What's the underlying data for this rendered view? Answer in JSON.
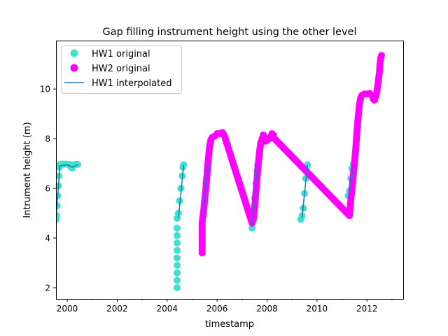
{
  "chart_data": {
    "type": "scatter",
    "title": "Gap filling instrument height using the other level",
    "xlabel": "timestamp",
    "ylabel": "Intrument height (m)",
    "xlim": [
      1999.55,
      2013.45
    ],
    "ylim": [
      1.55,
      11.95
    ],
    "xticks": [
      2000,
      2002,
      2004,
      2006,
      2008,
      2010,
      2012
    ],
    "xtick_labels": [
      "2000",
      "2002",
      "2004",
      "2006",
      "2008",
      "2010",
      "2012"
    ],
    "x_minor_ticks": [
      2001,
      2003,
      2005,
      2007,
      2009,
      2011,
      2013
    ],
    "yticks": [
      2,
      4,
      6,
      8,
      10
    ],
    "ytick_labels": [
      "2",
      "4",
      "6",
      "8",
      "10"
    ],
    "grid": false,
    "legend_position": "top-left",
    "colors": {
      "hw1": "#40e0d0",
      "hw2": "#ff00ff",
      "interp": "#1f77b4"
    },
    "series": [
      {
        "name": "HW1 original",
        "kind": "markers",
        "color": "#40e0d0",
        "points": [
          [
            1999.55,
            4.75
          ],
          [
            1999.58,
            4.9
          ],
          [
            1999.6,
            5.3
          ],
          [
            1999.62,
            5.7
          ],
          [
            1999.64,
            6.1
          ],
          [
            1999.66,
            6.5
          ],
          [
            1999.68,
            6.85
          ],
          [
            1999.7,
            6.95
          ],
          [
            1999.75,
            6.95
          ],
          [
            1999.8,
            6.98
          ],
          [
            1999.85,
            6.97
          ],
          [
            1999.95,
            6.98
          ],
          [
            2000.05,
            6.95
          ],
          [
            2000.1,
            6.96
          ],
          [
            2000.15,
            6.85
          ],
          [
            2000.2,
            6.82
          ],
          [
            2000.25,
            6.95
          ],
          [
            2000.35,
            6.97
          ],
          [
            2000.42,
            6.96
          ],
          [
            2004.4,
            2.0
          ],
          [
            2004.4,
            2.3
          ],
          [
            2004.4,
            2.6
          ],
          [
            2004.4,
            2.9
          ],
          [
            2004.4,
            3.2
          ],
          [
            2004.4,
            3.5
          ],
          [
            2004.4,
            3.8
          ],
          [
            2004.4,
            4.1
          ],
          [
            2004.4,
            4.4
          ],
          [
            2004.4,
            4.8
          ],
          [
            2004.45,
            5.0
          ],
          [
            2004.5,
            5.5
          ],
          [
            2004.55,
            6.0
          ],
          [
            2004.6,
            6.5
          ],
          [
            2004.63,
            6.85
          ],
          [
            2004.66,
            6.95
          ],
          [
            2005.45,
            4.9
          ],
          [
            2005.5,
            5.5
          ],
          [
            2005.55,
            6.2
          ],
          [
            2005.6,
            6.7
          ],
          [
            2005.62,
            6.95
          ],
          [
            2007.4,
            4.4
          ],
          [
            2007.45,
            5.0
          ],
          [
            2007.5,
            5.6
          ],
          [
            2007.55,
            6.2
          ],
          [
            2007.6,
            6.7
          ],
          [
            2007.62,
            6.95
          ],
          [
            2009.35,
            4.75
          ],
          [
            2009.4,
            4.9
          ],
          [
            2009.45,
            5.2
          ],
          [
            2009.5,
            5.8
          ],
          [
            2009.55,
            6.4
          ],
          [
            2009.58,
            6.85
          ],
          [
            2009.62,
            6.95
          ],
          [
            2011.25,
            5.7
          ],
          [
            2011.3,
            5.9
          ],
          [
            2011.35,
            6.4
          ],
          [
            2011.4,
            6.8
          ],
          [
            2011.45,
            6.98
          ]
        ]
      },
      {
        "name": "HW2 original",
        "kind": "markers",
        "color": "#ff00ff",
        "points": [
          [
            2005.4,
            3.4
          ],
          [
            2005.4,
            3.7
          ],
          [
            2005.4,
            4.0
          ],
          [
            2005.4,
            4.3
          ],
          [
            2005.4,
            4.6
          ],
          [
            2005.42,
            4.8
          ],
          [
            2005.45,
            5.0
          ],
          [
            2005.5,
            5.5
          ],
          [
            2005.55,
            6.0
          ],
          [
            2005.6,
            6.6
          ],
          [
            2005.65,
            7.2
          ],
          [
            2005.7,
            7.7
          ],
          [
            2005.75,
            7.95
          ],
          [
            2005.8,
            8.05
          ],
          [
            2005.9,
            8.1
          ],
          [
            2006.0,
            8.2
          ],
          [
            2006.1,
            8.2
          ],
          [
            2006.2,
            8.25
          ],
          [
            2006.25,
            8.2
          ],
          [
            2006.3,
            8.1
          ],
          [
            2006.33,
            8.0
          ],
          [
            2007.4,
            4.6
          ],
          [
            2007.45,
            4.75
          ],
          [
            2007.5,
            5.2
          ],
          [
            2007.55,
            5.8
          ],
          [
            2007.6,
            6.4
          ],
          [
            2007.65,
            7.0
          ],
          [
            2007.7,
            7.5
          ],
          [
            2007.75,
            7.85
          ],
          [
            2007.8,
            8.0
          ],
          [
            2007.85,
            8.15
          ],
          [
            2007.9,
            8.05
          ],
          [
            2007.95,
            7.9
          ],
          [
            2008.0,
            7.95
          ],
          [
            2008.1,
            8.0
          ],
          [
            2008.15,
            8.1
          ],
          [
            2008.2,
            8.2
          ],
          [
            2008.25,
            8.15
          ],
          [
            2008.3,
            8.0
          ],
          [
            2011.3,
            4.9
          ],
          [
            2011.35,
            5.5
          ],
          [
            2011.4,
            6.0
          ],
          [
            2011.45,
            6.5
          ],
          [
            2011.5,
            7.0
          ],
          [
            2011.55,
            7.6
          ],
          [
            2011.6,
            8.3
          ],
          [
            2011.65,
            8.9
          ],
          [
            2011.7,
            9.4
          ],
          [
            2011.75,
            9.65
          ],
          [
            2011.8,
            9.75
          ],
          [
            2011.9,
            9.8
          ],
          [
            2012.0,
            9.8
          ],
          [
            2012.1,
            9.82
          ],
          [
            2012.2,
            9.75
          ],
          [
            2012.25,
            9.6
          ],
          [
            2012.3,
            9.55
          ],
          [
            2012.35,
            9.7
          ],
          [
            2012.4,
            9.9
          ],
          [
            2012.45,
            10.3
          ],
          [
            2012.5,
            10.7
          ],
          [
            2012.52,
            11.0
          ],
          [
            2012.55,
            11.25
          ],
          [
            2012.58,
            11.35
          ]
        ]
      },
      {
        "name": "HW1 interpolated",
        "kind": "line",
        "color": "#1f77b4",
        "segments": [
          [
            [
              1999.55,
              4.75
            ],
            [
              1999.65,
              6.1
            ],
            [
              1999.7,
              6.9
            ],
            [
              2000.0,
              6.95
            ],
            [
              2000.2,
              6.85
            ],
            [
              2000.42,
              6.95
            ]
          ],
          [
            [
              2004.45,
              4.8
            ],
            [
              2004.55,
              5.8
            ],
            [
              2004.66,
              6.95
            ]
          ],
          [
            [
              2005.45,
              4.9
            ],
            [
              2005.55,
              6.1
            ],
            [
              2005.62,
              6.95
            ]
          ],
          [
            [
              2007.4,
              4.5
            ],
            [
              2007.5,
              5.6
            ],
            [
              2007.62,
              6.95
            ]
          ],
          [
            [
              2009.4,
              4.8
            ],
            [
              2009.5,
              5.8
            ],
            [
              2009.62,
              6.95
            ]
          ],
          [
            [
              2011.3,
              5.8
            ],
            [
              2011.45,
              6.95
            ]
          ]
        ]
      }
    ]
  }
}
